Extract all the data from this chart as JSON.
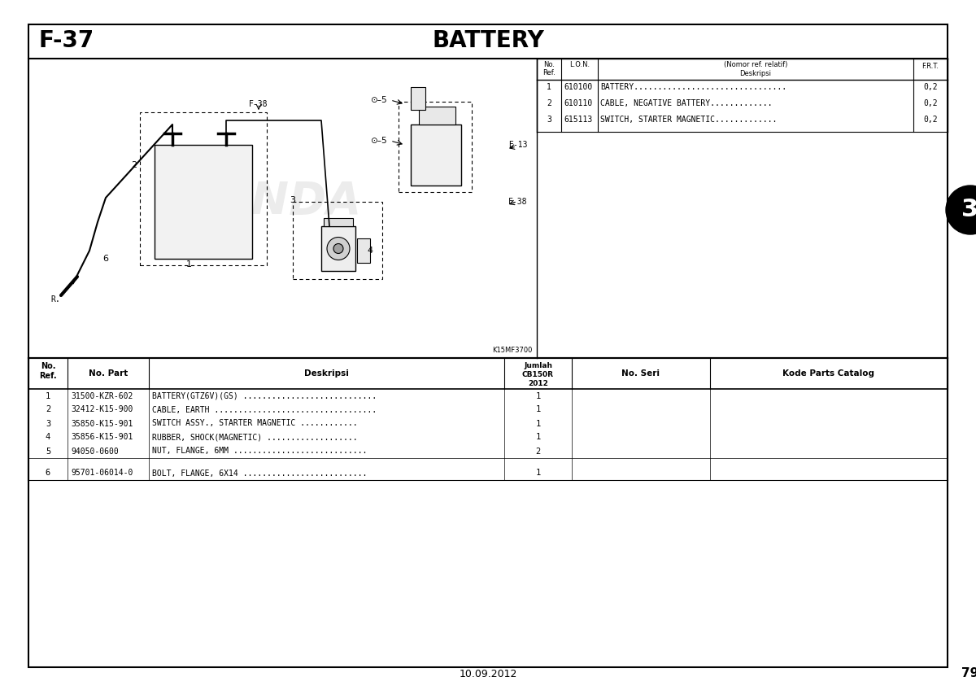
{
  "page_num": "79",
  "section_code": "F-37",
  "section_title": "BATTERY",
  "date": "10.09.2012",
  "tab_number": "3",
  "bg_color": "#ffffff",
  "outer_border_color": "#000000",
  "right_table_rows": [
    {
      "ref": "1",
      "lon": "610100",
      "desc": "BATTERY................................",
      "frt": "0,2"
    },
    {
      "ref": "2",
      "lon": "610110",
      "desc": "CABLE, NEGATIVE BATTERY.............",
      "frt": "0,2"
    },
    {
      "ref": "3",
      "lon": "615113",
      "desc": "SWITCH, STARTER MAGNETIC.............",
      "frt": "0,2"
    }
  ],
  "bottom_table_rows": [
    {
      "ref": "1",
      "part": "31500-KZR-602",
      "desc": "BATTERY(GTZ6V)(GS) ............................",
      "qty": "1"
    },
    {
      "ref": "2",
      "part": "32412-K15-900",
      "desc": "CABLE, EARTH ..................................",
      "qty": "1"
    },
    {
      "ref": "3",
      "part": "35850-K15-901",
      "desc": "SWITCH ASSY., STARTER MAGNETIC ............",
      "qty": "1"
    },
    {
      "ref": "4",
      "part": "35856-K15-901",
      "desc": "RUBBER, SHOCK(MAGNETIC) ...................",
      "qty": "1"
    },
    {
      "ref": "5",
      "part": "94050-0600",
      "desc": "NUT, FLANGE, 6MM ............................",
      "qty": "2"
    },
    {
      "ref": "6",
      "part": "95701-06014-0",
      "desc": "BOLT, FLANGE, 6X14 ..........................",
      "qty": "1"
    }
  ],
  "diagram_code": "K15MF3700"
}
